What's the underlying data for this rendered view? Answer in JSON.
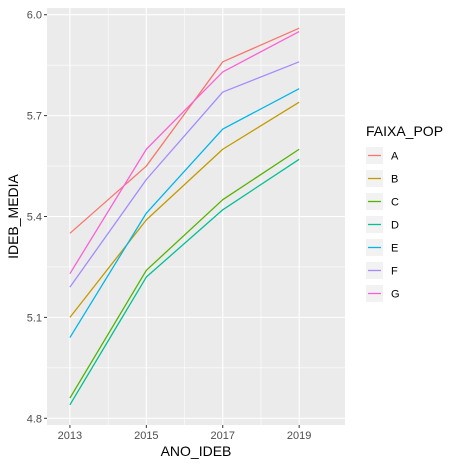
{
  "chart_data": {
    "type": "line",
    "xlabel": "ANO_IDEB",
    "ylabel": "IDEB_MEDIA",
    "x": [
      2013,
      2015,
      2017,
      2019
    ],
    "x_ticks": [
      "2013",
      "2015",
      "2017",
      "2019"
    ],
    "xlim": [
      2012.4,
      2020.2
    ],
    "ylim": [
      4.78,
      6.02
    ],
    "y_ticks": [
      4.8,
      5.1,
      5.4,
      5.7,
      6.0
    ],
    "y_tick_labels": [
      "4.8",
      "5.1",
      "5.4",
      "5.7",
      "6.0"
    ],
    "grid": true,
    "legend": {
      "title": "FAIXA_POP",
      "position": "right"
    },
    "series": [
      {
        "name": "A",
        "color": "#F8766D",
        "values": [
          5.35,
          5.55,
          5.86,
          5.96
        ]
      },
      {
        "name": "B",
        "color": "#C49A00",
        "values": [
          5.1,
          5.39,
          5.6,
          5.74
        ]
      },
      {
        "name": "C",
        "color": "#53B400",
        "values": [
          4.86,
          5.24,
          5.45,
          5.6
        ]
      },
      {
        "name": "D",
        "color": "#00C094",
        "values": [
          4.84,
          5.22,
          5.42,
          5.57
        ]
      },
      {
        "name": "E",
        "color": "#00B6EB",
        "values": [
          5.04,
          5.41,
          5.66,
          5.78
        ]
      },
      {
        "name": "F",
        "color": "#A58AFF",
        "values": [
          5.19,
          5.51,
          5.77,
          5.86
        ]
      },
      {
        "name": "G",
        "color": "#FB61D7",
        "values": [
          5.23,
          5.6,
          5.83,
          5.95
        ]
      }
    ]
  }
}
